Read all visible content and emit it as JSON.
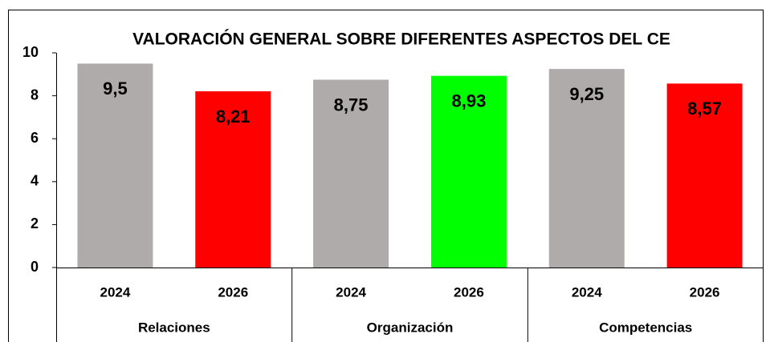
{
  "chart_data": {
    "type": "bar",
    "title": "VALORACIÓN GENERAL SOBRE DIFERENTES ASPECTOS DEL CE",
    "categories": [
      "2024",
      "2026",
      "2024",
      "2026",
      "2024",
      "2026"
    ],
    "groups": [
      "Relaciones",
      "Organización",
      "Competencias"
    ],
    "values": [
      9.5,
      8.21,
      8.75,
      8.93,
      9.25,
      8.57
    ],
    "value_labels": [
      "9,5",
      "8,21",
      "8,75",
      "8,93",
      "9,25",
      "8,57"
    ],
    "colors": [
      "#afabab",
      "#ff0000",
      "#afabab",
      "#00ff00",
      "#afabab",
      "#ff0000"
    ],
    "ylim": [
      0,
      10
    ],
    "yticks": [
      0,
      2,
      4,
      6,
      8,
      10
    ],
    "grid": false
  }
}
